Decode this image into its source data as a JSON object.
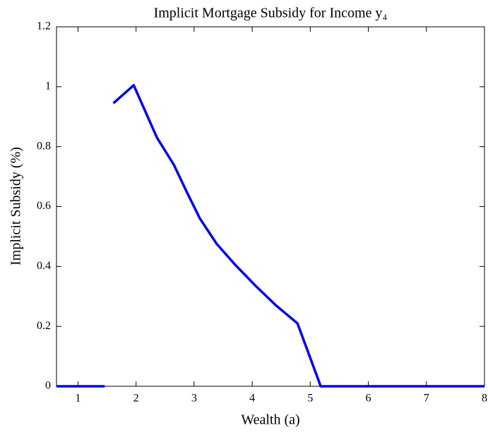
{
  "chart_data": {
    "type": "line",
    "title": "Implicit Mortgage Subsidy for Income y₄",
    "xlabel": "Wealth (a)",
    "ylabel": "Implicit Subsidy (%)",
    "x": [
      0.63,
      1.46,
      null,
      1.61,
      1.96,
      2.36,
      2.65,
      2.87,
      3.1,
      3.39,
      3.71,
      4.06,
      4.41,
      4.78,
      5.18,
      8
    ],
    "series": [
      {
        "name": "Implicit Subsidy",
        "color": "#0000ee",
        "values": [
          0,
          0,
          null,
          0.945,
          1.005,
          0.83,
          0.74,
          0.65,
          0.56,
          0.475,
          0.405,
          0.335,
          0.27,
          0.21,
          0,
          0
        ]
      }
    ],
    "xlim": [
      0.63,
      8
    ],
    "ylim": [
      0,
      1.2
    ],
    "xticks": [
      1,
      2,
      3,
      4,
      5,
      6,
      7,
      8
    ],
    "yticks": [
      0,
      0.2,
      0.4,
      0.6,
      0.8,
      1,
      1.2
    ],
    "grid": false
  }
}
